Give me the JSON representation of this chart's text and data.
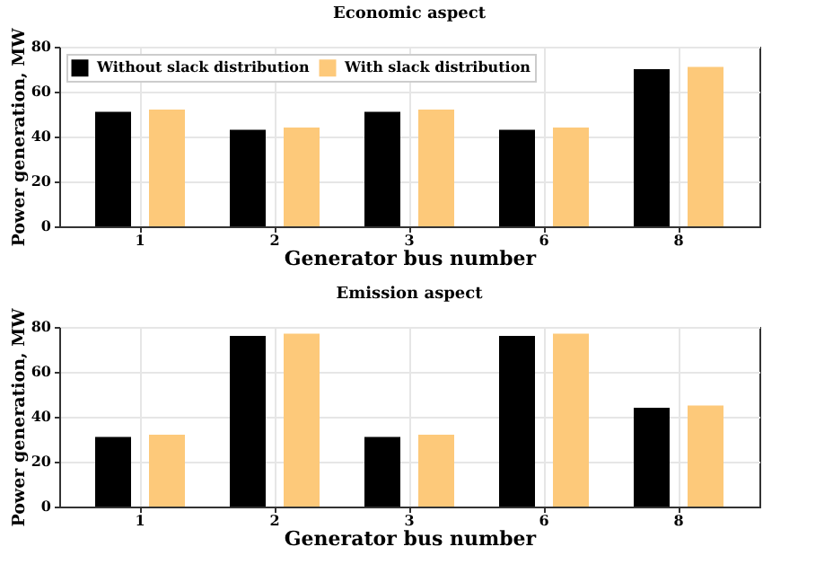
{
  "chart_data": [
    {
      "type": "bar",
      "title": "Economic aspect",
      "xlabel": "Generator bus number",
      "ylabel": "Power generation, MW",
      "categories": [
        "1",
        "2",
        "3",
        "6",
        "8"
      ],
      "series": [
        {
          "name": "Without slack distribution",
          "color": "#000000",
          "values": [
            51,
            43,
            51,
            43,
            70
          ]
        },
        {
          "name": "With slack distribution",
          "color": "#fdc97a",
          "values": [
            52,
            44,
            52,
            44,
            71
          ]
        }
      ],
      "ylim": [
        0,
        80
      ],
      "yticks": [
        0,
        20,
        40,
        60,
        80
      ],
      "grid": true,
      "legend": "top left"
    },
    {
      "type": "bar",
      "title": "Emission aspect",
      "xlabel": "Generator bus number",
      "ylabel": "Power generation, MW",
      "categories": [
        "1",
        "2",
        "3",
        "6",
        "8"
      ],
      "series": [
        {
          "color": "#000000",
          "values": [
            31,
            76,
            31,
            76,
            44
          ]
        },
        {
          "color": "#fdc97a",
          "values": [
            32,
            77,
            32,
            77,
            45
          ]
        }
      ],
      "ylim": [
        0,
        80
      ],
      "yticks": [
        0,
        20,
        40,
        60,
        80
      ],
      "grid": true
    }
  ]
}
